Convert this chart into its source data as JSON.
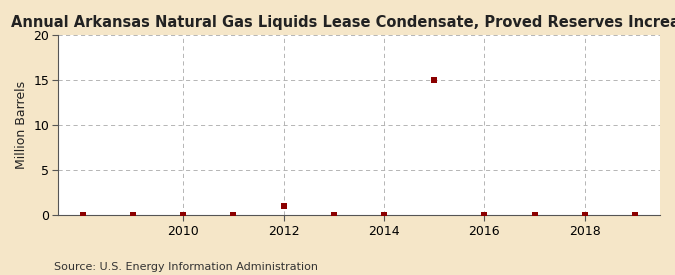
{
  "title": "Annual Arkansas Natural Gas Liquids Lease Condensate, Proved Reserves Increases",
  "ylabel": "Million Barrels",
  "source": "Source: U.S. Energy Information Administration",
  "figure_bg": "#f5e6c8",
  "axes_bg": "#ffffff",
  "years": [
    2008,
    2009,
    2010,
    2011,
    2012,
    2013,
    2014,
    2015,
    2016,
    2017,
    2018,
    2019
  ],
  "values": [
    0,
    0,
    0,
    0,
    1,
    0,
    0,
    15,
    0,
    0,
    0,
    0
  ],
  "marker_color": "#8b0000",
  "marker_size": 18,
  "xlim": [
    2007.5,
    2019.5
  ],
  "ylim": [
    0,
    20
  ],
  "yticks": [
    0,
    5,
    10,
    15,
    20
  ],
  "xticks": [
    2010,
    2012,
    2014,
    2016,
    2018
  ],
  "grid_color": "#aaaaaa",
  "title_fontsize": 10.5,
  "axis_fontsize": 9,
  "tick_fontsize": 9,
  "source_fontsize": 8
}
